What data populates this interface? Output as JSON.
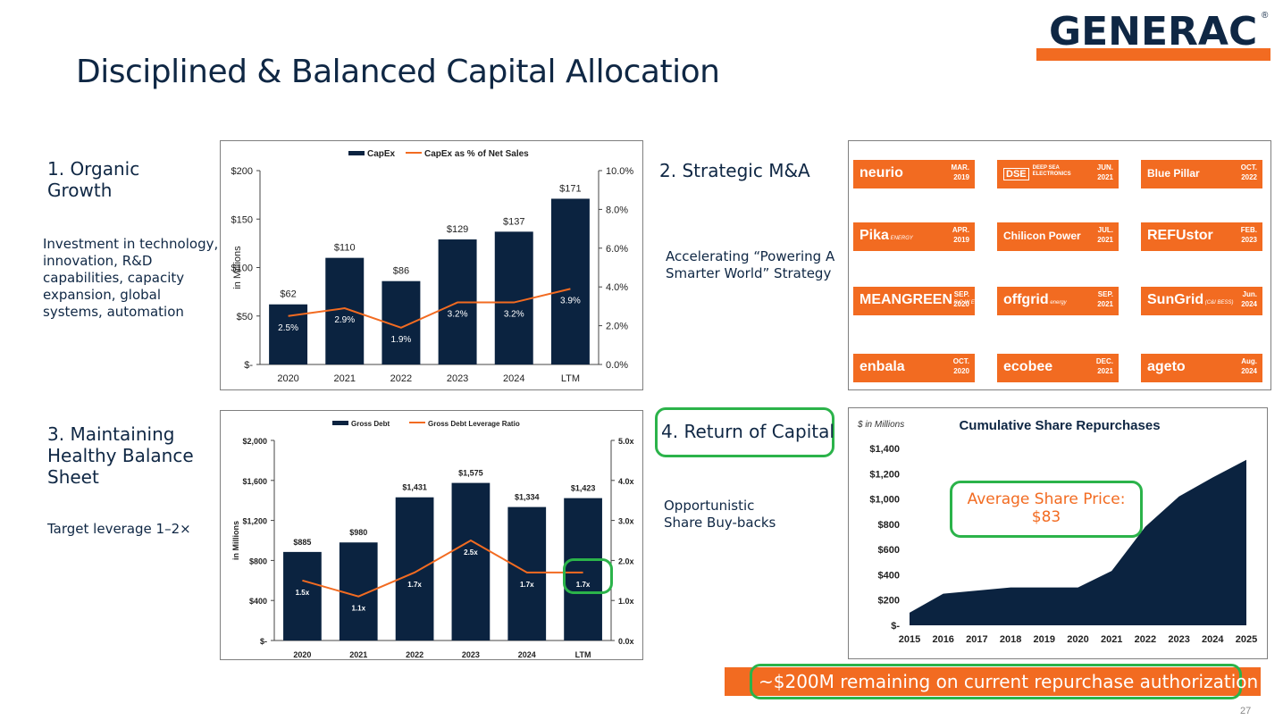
{
  "header": {
    "title": "Disciplined & Balanced Capital Allocation",
    "logo_text": "GENERAC",
    "logo_mark": "®"
  },
  "sections": {
    "organic": {
      "heading_line1": "1. Organic",
      "heading_line2": "Growth",
      "body": [
        "Investment in technology,",
        "innovation, R&D",
        "capabilities, capacity",
        "expansion, global",
        "systems, automation"
      ]
    },
    "ma": {
      "heading": "2. Strategic M&A",
      "body": [
        "Accelerating “Powering A",
        "Smarter World” Strategy"
      ]
    },
    "balance": {
      "heading_lines": [
        "3. Maintaining",
        "Healthy Balance",
        "Sheet"
      ],
      "body": "Target leverage 1–2×"
    },
    "return": {
      "heading": "4. Return of Capital",
      "body": [
        "Opportunistic",
        "Share Buy-backs"
      ]
    }
  },
  "acquisitions": [
    {
      "name": "neurio",
      "month": "MAR.",
      "year": "2019"
    },
    {
      "name": "DEEP SEA ELECTRONICS",
      "prefix": "DSE",
      "month": "JUN.",
      "year": "2021"
    },
    {
      "name": "Blue Pillar",
      "month": "OCT.",
      "year": "2022"
    },
    {
      "name": "Pika",
      "sub": "ENERGY",
      "month": "APR.",
      "year": "2019"
    },
    {
      "name": "Chilicon Power",
      "month": "JUL.",
      "year": "2021"
    },
    {
      "name": "REFUstor",
      "month": "FEB.",
      "year": "2023"
    },
    {
      "name": "MEANGREEN",
      "sub": "P O W E R",
      "month": "SEP.",
      "year": "2020"
    },
    {
      "name": "offgrid",
      "sub": "energy",
      "month": "SEP.",
      "year": "2021"
    },
    {
      "name": "SunGrid",
      "sub": "(C&I BESS)",
      "month": "Jun.",
      "year": "2024"
    },
    {
      "name": "enbala",
      "month": "OCT.",
      "year": "2020"
    },
    {
      "name": "ecobee",
      "month": "DEC.",
      "year": "2021"
    },
    {
      "name": "ageto",
      "month": "Aug.",
      "year": "2024"
    }
  ],
  "callouts": {
    "avg_price_label": "Average Share Price:",
    "avg_price_value": "$83",
    "remaining": "~$200M remaining on current repurchase authorization",
    "page_number": "27"
  },
  "colors": {
    "navy": "#0b2340",
    "orange": "#f26b21",
    "green": "#2bb34a"
  },
  "chart_data": [
    {
      "type": "bar",
      "title": "",
      "legend": [
        "CapEx",
        "CapEx as % of Net Sales"
      ],
      "ylabel": "in Millions",
      "categories": [
        "2020",
        "2021",
        "2022",
        "2023",
        "2024",
        "LTM"
      ],
      "series": [
        {
          "name": "CapEx",
          "type": "bar",
          "values": [
            62,
            110,
            86,
            129,
            137,
            171
          ],
          "labels": [
            "$62",
            "$110",
            "$86",
            "$129",
            "$137",
            "$171"
          ]
        },
        {
          "name": "CapEx as % of Net Sales",
          "type": "line",
          "axis": "right",
          "values": [
            2.5,
            2.9,
            1.9,
            3.2,
            3.2,
            3.9
          ],
          "labels": [
            "2.5%",
            "2.9%",
            "1.9%",
            "3.2%",
            "3.2%",
            "3.9%"
          ]
        }
      ],
      "ylim": [
        0,
        200
      ],
      "yticks": [
        0,
        50,
        100,
        150,
        200
      ],
      "ytick_labels": [
        "$-",
        "$50",
        "$100",
        "$150",
        "$200"
      ],
      "y2lim": [
        0,
        10
      ],
      "y2ticks": [
        0,
        2,
        4,
        6,
        8,
        10
      ],
      "y2tick_labels": [
        "0.0%",
        "2.0%",
        "4.0%",
        "6.0%",
        "8.0%",
        "10.0%"
      ]
    },
    {
      "type": "bar",
      "title": "",
      "legend": [
        "Gross Debt",
        "Gross Debt Leverage Ratio"
      ],
      "ylabel": "in Millions",
      "categories": [
        "2020",
        "2021",
        "2022",
        "2023",
        "2024",
        "LTM"
      ],
      "series": [
        {
          "name": "Gross Debt",
          "type": "bar",
          "values": [
            885,
            980,
            1431,
            1575,
            1334,
            1423
          ],
          "labels": [
            "$885",
            "$980",
            "$1,431",
            "$1,575",
            "$1,334",
            "$1,423"
          ]
        },
        {
          "name": "Gross Debt Leverage Ratio",
          "type": "line",
          "axis": "right",
          "values": [
            1.5,
            1.1,
            1.7,
            2.5,
            1.7,
            1.7
          ],
          "labels": [
            "1.5x",
            "1.1x",
            "1.7x",
            "2.5x",
            "1.7x",
            "1.7x"
          ]
        }
      ],
      "ylim": [
        0,
        2000
      ],
      "yticks": [
        0,
        400,
        800,
        1200,
        1600,
        2000
      ],
      "ytick_labels": [
        "$-",
        "$400",
        "$800",
        "$1,200",
        "$1,600",
        "$2,000"
      ],
      "y2lim": [
        0,
        5
      ],
      "y2ticks": [
        0,
        1,
        2,
        3,
        4,
        5
      ],
      "y2tick_labels": [
        "0.0x",
        "1.0x",
        "2.0x",
        "3.0x",
        "4.0x",
        "5.0x"
      ]
    },
    {
      "type": "area",
      "title": "Cumulative Share Repurchases",
      "ylabel": "$ in Millions",
      "categories": [
        "2015",
        "2016",
        "2017",
        "2018",
        "2019",
        "2020",
        "2021",
        "2022",
        "2023",
        "2024",
        "2025"
      ],
      "values": [
        100,
        250,
        275,
        300,
        300,
        300,
        430,
        780,
        1020,
        1170,
        1310
      ],
      "ylim": [
        0,
        1400
      ],
      "yticks": [
        0,
        200,
        400,
        600,
        800,
        1000,
        1200,
        1400
      ],
      "ytick_labels": [
        "$-",
        "$200",
        "$400",
        "$600",
        "$800",
        "$1,000",
        "$1,200",
        "$1,400"
      ]
    }
  ]
}
